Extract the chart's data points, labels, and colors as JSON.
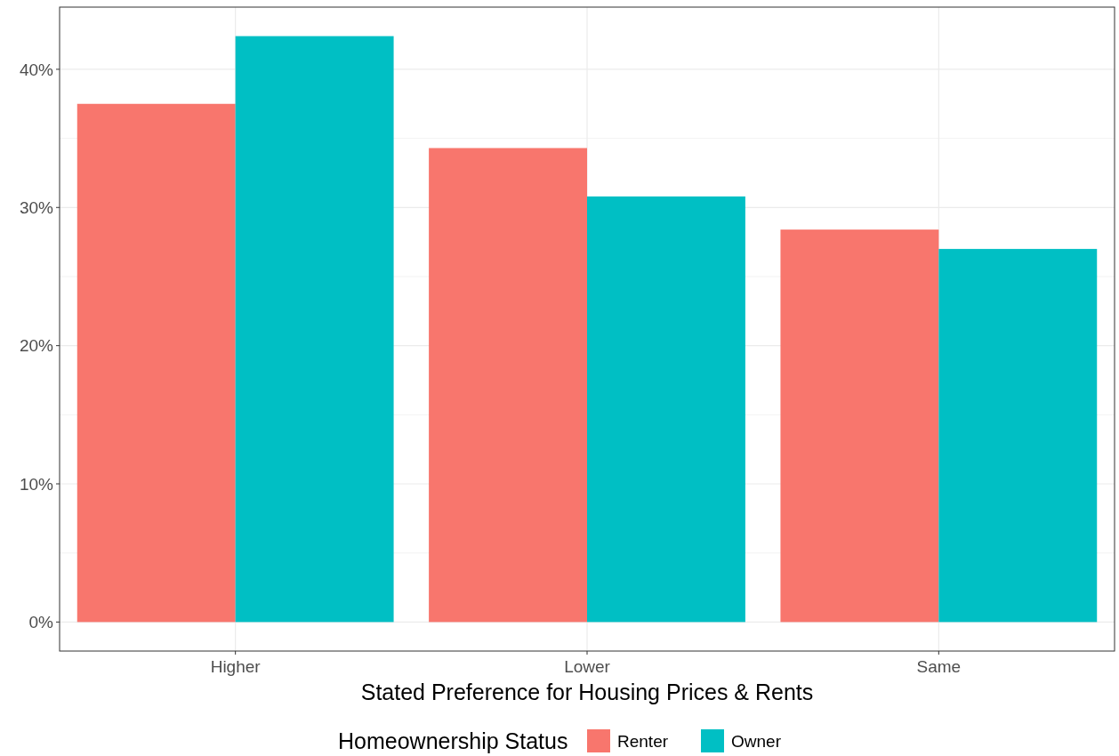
{
  "chart_data": {
    "type": "bar",
    "xlabel": "Stated Preference for Housing Prices & Rents",
    "legend_title": "Homeownership Status",
    "categories": [
      "Higher",
      "Lower",
      "Same"
    ],
    "series": [
      {
        "name": "Renter",
        "color": "#f8766d",
        "values": [
          37.5,
          34.3,
          28.4
        ]
      },
      {
        "name": "Owner",
        "color": "#00bfc4",
        "values": [
          42.4,
          30.8,
          27.0
        ]
      }
    ],
    "ylim": [
      -2.1,
      44.5
    ],
    "yticks": [
      {
        "value": 0,
        "label": "0%"
      },
      {
        "value": 5,
        "label": null
      },
      {
        "value": 10,
        "label": "10%"
      },
      {
        "value": 15,
        "label": null
      },
      {
        "value": 20,
        "label": "20%"
      },
      {
        "value": 25,
        "label": null
      },
      {
        "value": 30,
        "label": "30%"
      },
      {
        "value": 35,
        "label": null
      },
      {
        "value": 40,
        "label": "40%"
      }
    ],
    "grid": true,
    "legend": "bottom"
  }
}
